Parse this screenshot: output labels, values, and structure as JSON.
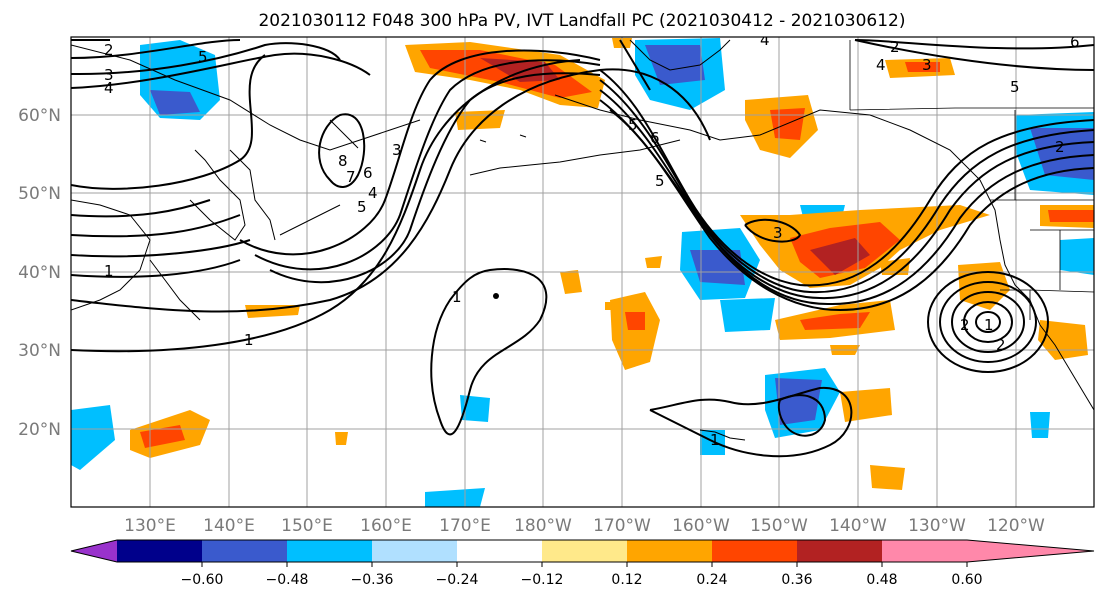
{
  "title": "2021030112 F048 300 hPa PV, IVT Landfall PC (2021030412 - 2021030612)",
  "lat_labels": [
    "60°N",
    "50°N",
    "40°N",
    "30°N",
    "20°N"
  ],
  "lon_labels": [
    "130°E",
    "140°E",
    "150°E",
    "160°E",
    "170°E",
    "180°W",
    "170°W",
    "160°W",
    "150°W",
    "140°W",
    "130°W",
    "120°W"
  ],
  "colorbar": {
    "colors": [
      "#9932CC",
      "#00008B",
      "#3A5ACD",
      "#00BFFF",
      "#B0E0FF",
      "#FFFFFF",
      "#FFE98A",
      "#FFA500",
      "#FF4500",
      "#B22222",
      "#FF88AA"
    ],
    "tick_labels": [
      "−0.60",
      "−0.48",
      "−0.36",
      "−0.24",
      "−0.12",
      "0.12",
      "0.24",
      "0.36",
      "0.48",
      "0.60"
    ]
  },
  "contour_labels": [
    "2",
    "3",
    "4",
    "5",
    "8",
    "7",
    "6",
    "5",
    "4",
    "3",
    "1",
    "1",
    "1",
    "1",
    "5",
    "6",
    "5",
    "4",
    "2",
    "3",
    "4",
    "5",
    "2",
    "6",
    "1",
    "2",
    "2",
    "3"
  ],
  "colors": {
    "axes": "#000000",
    "grid": "#a0a0a0",
    "tick_text": "#7a7a7a"
  }
}
